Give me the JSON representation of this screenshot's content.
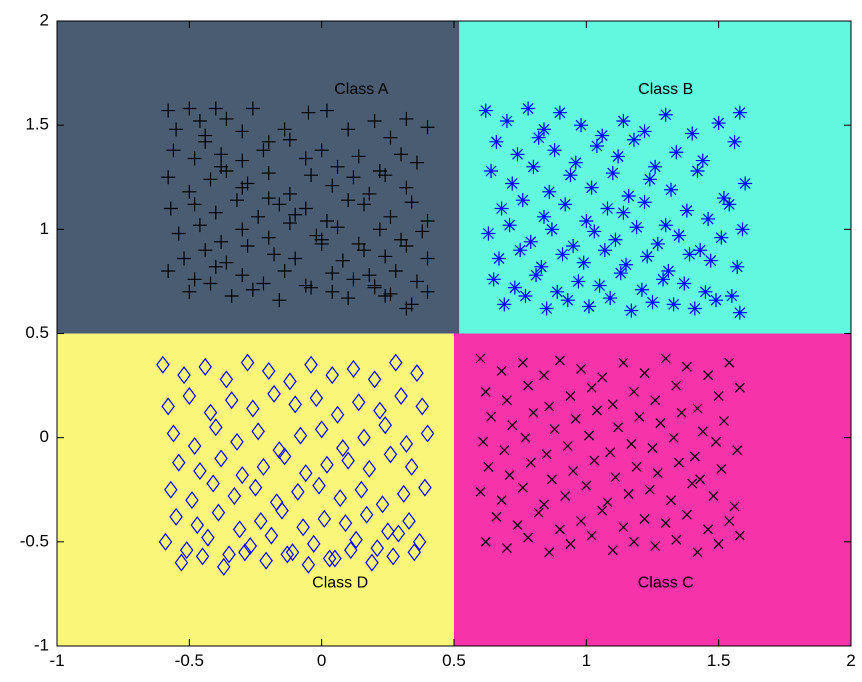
{
  "chart_data": {
    "type": "scatter",
    "title": "",
    "xlabel": "",
    "ylabel": "",
    "xlim": [
      -1,
      2
    ],
    "ylim": [
      -1,
      2
    ],
    "x_ticks": [
      "-1",
      "-0.5",
      "0",
      "0.5",
      "1",
      "1.5",
      "2"
    ],
    "y_ticks": [
      "-1",
      "-0.5",
      "0",
      "0.5",
      "1",
      "1.5",
      "2"
    ],
    "grid": false,
    "regions": [
      {
        "label": "Class A",
        "x": [
          -1,
          0.52
        ],
        "y": [
          0.5,
          2
        ],
        "color": "#4a5c72",
        "label_at": [
          0.15,
          1.67
        ]
      },
      {
        "label": "Class B",
        "x": [
          0.52,
          2
        ],
        "y": [
          0.5,
          2
        ],
        "color": "#62f8e0",
        "label_at": [
          1.3,
          1.67
        ]
      },
      {
        "label": "Class D",
        "x": [
          -1,
          0.5
        ],
        "y": [
          -1,
          0.5
        ],
        "color": "#faf67a",
        "label_at": [
          0.07,
          -0.7
        ]
      },
      {
        "label": "Class C",
        "x": [
          0.5,
          2
        ],
        "y": [
          -1,
          0.5
        ],
        "color": "#f733a9",
        "label_at": [
          1.3,
          -0.7
        ]
      }
    ],
    "series": [
      {
        "marker": "plus",
        "color": "#000000",
        "x": [
          -0.58,
          -0.55,
          -0.5,
          -0.46,
          -0.4,
          -0.36,
          -0.3,
          -0.26,
          -0.2,
          -0.14,
          -0.05,
          0.02,
          0.1,
          0.2,
          0.26,
          0.32,
          0.4,
          -0.56,
          -0.48,
          -0.44,
          -0.38,
          -0.3,
          -0.22,
          -0.12,
          -0.06,
          0.0,
          0.06,
          0.14,
          0.22,
          0.3,
          0.36,
          -0.58,
          -0.5,
          -0.42,
          -0.36,
          -0.28,
          -0.2,
          -0.12,
          -0.04,
          0.04,
          0.12,
          0.18,
          0.24,
          0.32,
          -0.57,
          -0.48,
          -0.4,
          -0.32,
          -0.24,
          -0.16,
          -0.06,
          0.02,
          0.1,
          0.16,
          0.26,
          0.34,
          0.4,
          -0.54,
          -0.46,
          -0.38,
          -0.3,
          -0.2,
          -0.12,
          -0.02,
          0.06,
          0.14,
          0.22,
          0.3,
          0.38,
          -0.52,
          -0.44,
          -0.36,
          -0.28,
          -0.18,
          -0.1,
          0.0,
          0.08,
          0.16,
          0.24,
          0.32,
          0.4,
          -0.58,
          -0.48,
          -0.4,
          -0.3,
          -0.22,
          -0.14,
          -0.04,
          0.04,
          0.12,
          0.2,
          0.28,
          0.36,
          -0.5,
          -0.42,
          -0.34,
          -0.26,
          -0.16,
          -0.06,
          0.04,
          0.1,
          0.2,
          0.26,
          0.34,
          0.4,
          -0.44,
          -0.38,
          -0.3,
          -0.2,
          -0.1,
          0.0,
          0.08,
          0.18,
          0.24,
          0.32
        ],
        "y": [
          1.57,
          1.48,
          1.58,
          1.52,
          1.58,
          1.53,
          1.47,
          1.58,
          1.42,
          1.48,
          1.56,
          1.57,
          1.48,
          1.52,
          1.44,
          1.53,
          1.49,
          1.38,
          1.34,
          1.42,
          1.36,
          1.33,
          1.38,
          1.43,
          1.34,
          1.38,
          1.3,
          1.35,
          1.28,
          1.36,
          1.32,
          1.25,
          1.18,
          1.24,
          1.28,
          1.22,
          1.27,
          1.17,
          1.26,
          1.21,
          1.25,
          1.17,
          1.26,
          1.2,
          1.1,
          1.12,
          1.08,
          1.14,
          1.06,
          1.12,
          1.1,
          1.04,
          1.14,
          1.12,
          1.06,
          1.13,
          1.04,
          0.98,
          1.02,
          0.94,
          1.0,
          0.96,
          1.03,
          0.97,
          1.01,
          0.93,
          1.0,
          0.95,
          0.99,
          0.86,
          0.9,
          0.84,
          0.92,
          0.88,
          0.86,
          0.93,
          0.85,
          0.9,
          0.87,
          0.92,
          0.86,
          0.8,
          0.76,
          0.82,
          0.78,
          0.74,
          0.8,
          0.72,
          0.79,
          0.76,
          0.73,
          0.8,
          0.75,
          0.7,
          0.74,
          0.68,
          0.71,
          0.66,
          0.73,
          0.7,
          0.67,
          0.72,
          0.69,
          0.64,
          0.7,
          1.45,
          1.3,
          1.2,
          1.15,
          1.07,
          0.95,
          0.85,
          0.78,
          0.68,
          0.62
        ]
      },
      {
        "marker": "asterisk",
        "color": "#0000ff",
        "x": [
          0.62,
          0.7,
          0.78,
          0.84,
          0.9,
          0.98,
          1.06,
          1.14,
          1.22,
          1.3,
          1.4,
          1.5,
          1.58,
          0.66,
          0.74,
          0.82,
          0.88,
          0.96,
          1.04,
          1.12,
          1.18,
          1.26,
          1.34,
          1.44,
          1.56,
          0.64,
          0.72,
          0.8,
          0.86,
          0.94,
          1.02,
          1.1,
          1.16,
          1.24,
          1.32,
          1.42,
          1.52,
          1.6,
          0.68,
          0.76,
          0.84,
          0.92,
          1.0,
          1.08,
          1.14,
          1.22,
          1.3,
          1.38,
          1.46,
          1.54,
          0.63,
          0.71,
          0.79,
          0.87,
          0.95,
          1.03,
          1.11,
          1.19,
          1.27,
          1.35,
          1.43,
          1.51,
          1.59,
          0.67,
          0.75,
          0.83,
          0.91,
          0.99,
          1.07,
          1.15,
          1.23,
          1.31,
          1.39,
          1.47,
          1.57,
          0.65,
          0.73,
          0.81,
          0.89,
          0.97,
          1.05,
          1.13,
          1.21,
          1.29,
          1.37,
          1.45,
          1.55,
          0.69,
          0.77,
          0.85,
          0.93,
          1.01,
          1.09,
          1.17,
          1.25,
          1.33,
          1.41,
          1.49,
          1.58
        ],
        "y": [
          1.57,
          1.52,
          1.58,
          1.48,
          1.56,
          1.5,
          1.45,
          1.52,
          1.47,
          1.55,
          1.46,
          1.51,
          1.56,
          1.42,
          1.36,
          1.44,
          1.38,
          1.32,
          1.4,
          1.35,
          1.43,
          1.3,
          1.37,
          1.33,
          1.42,
          1.28,
          1.22,
          1.3,
          1.18,
          1.26,
          1.2,
          1.27,
          1.16,
          1.24,
          1.19,
          1.28,
          1.15,
          1.22,
          1.1,
          1.14,
          1.06,
          1.12,
          1.04,
          1.1,
          1.08,
          1.13,
          1.02,
          1.09,
          1.05,
          1.12,
          0.98,
          1.02,
          0.94,
          1.0,
          0.92,
          0.99,
          0.95,
          1.01,
          0.93,
          0.97,
          0.9,
          0.96,
          1.0,
          0.86,
          0.9,
          0.82,
          0.88,
          0.84,
          0.9,
          0.83,
          0.87,
          0.8,
          0.88,
          0.85,
          0.82,
          0.76,
          0.72,
          0.78,
          0.7,
          0.75,
          0.73,
          0.79,
          0.71,
          0.76,
          0.74,
          0.7,
          0.68,
          0.64,
          0.68,
          0.62,
          0.66,
          0.63,
          0.67,
          0.61,
          0.65,
          0.64,
          0.62,
          0.66,
          0.6
        ]
      },
      {
        "marker": "x",
        "color": "#000000",
        "x": [
          0.6,
          0.68,
          0.76,
          0.84,
          0.9,
          0.98,
          1.06,
          1.14,
          1.22,
          1.3,
          1.38,
          1.46,
          1.54,
          0.62,
          0.7,
          0.78,
          0.86,
          0.94,
          1.02,
          1.1,
          1.18,
          1.26,
          1.34,
          1.42,
          1.5,
          1.58,
          0.64,
          0.72,
          0.8,
          0.88,
          0.96,
          1.04,
          1.12,
          1.2,
          1.28,
          1.36,
          1.44,
          1.52,
          0.61,
          0.69,
          0.77,
          0.85,
          0.93,
          1.01,
          1.09,
          1.17,
          1.25,
          1.33,
          1.41,
          1.49,
          1.57,
          0.63,
          0.71,
          0.79,
          0.87,
          0.95,
          1.03,
          1.11,
          1.19,
          1.27,
          1.35,
          1.43,
          1.51,
          0.6,
          0.68,
          0.76,
          0.84,
          0.92,
          1.0,
          1.08,
          1.16,
          1.24,
          1.32,
          1.4,
          1.48,
          1.56,
          0.66,
          0.74,
          0.82,
          0.9,
          0.98,
          1.06,
          1.14,
          1.22,
          1.3,
          1.38,
          1.46,
          1.54,
          0.62,
          0.7,
          0.78,
          0.86,
          0.94,
          1.02,
          1.1,
          1.18,
          1.26,
          1.34,
          1.42,
          1.5,
          1.58
        ],
        "y": [
          0.38,
          0.32,
          0.36,
          0.3,
          0.37,
          0.33,
          0.29,
          0.36,
          0.31,
          0.38,
          0.34,
          0.3,
          0.36,
          0.22,
          0.18,
          0.25,
          0.15,
          0.2,
          0.24,
          0.16,
          0.22,
          0.18,
          0.25,
          0.14,
          0.2,
          0.24,
          0.1,
          0.06,
          0.12,
          0.04,
          0.09,
          0.13,
          0.05,
          0.1,
          0.07,
          0.12,
          0.03,
          0.08,
          -0.02,
          -0.06,
          0.0,
          -0.08,
          -0.04,
          0.01,
          -0.07,
          -0.03,
          -0.05,
          0.0,
          -0.09,
          -0.02,
          -0.06,
          -0.14,
          -0.18,
          -0.12,
          -0.2,
          -0.16,
          -0.11,
          -0.19,
          -0.14,
          -0.17,
          -0.12,
          -0.2,
          -0.15,
          -0.26,
          -0.3,
          -0.24,
          -0.32,
          -0.28,
          -0.23,
          -0.31,
          -0.27,
          -0.25,
          -0.3,
          -0.22,
          -0.28,
          -0.33,
          -0.38,
          -0.42,
          -0.36,
          -0.44,
          -0.4,
          -0.35,
          -0.43,
          -0.39,
          -0.41,
          -0.37,
          -0.44,
          -0.4,
          -0.5,
          -0.53,
          -0.48,
          -0.55,
          -0.51,
          -0.47,
          -0.54,
          -0.5,
          -0.52,
          -0.49,
          -0.55,
          -0.51,
          -0.47
        ]
      },
      {
        "marker": "diamond",
        "color": "#0000ff",
        "x": [
          -0.6,
          -0.52,
          -0.44,
          -0.36,
          -0.28,
          -0.2,
          -0.12,
          -0.04,
          0.04,
          0.12,
          0.2,
          0.28,
          0.36,
          -0.58,
          -0.5,
          -0.42,
          -0.34,
          -0.26,
          -0.18,
          -0.1,
          -0.02,
          0.06,
          0.14,
          0.22,
          0.3,
          0.38,
          -0.56,
          -0.48,
          -0.4,
          -0.32,
          -0.24,
          -0.16,
          -0.08,
          0.0,
          0.08,
          0.16,
          0.24,
          0.32,
          0.4,
          -0.54,
          -0.46,
          -0.38,
          -0.3,
          -0.22,
          -0.14,
          -0.06,
          0.02,
          0.1,
          0.18,
          0.26,
          0.34,
          -0.57,
          -0.49,
          -0.41,
          -0.33,
          -0.25,
          -0.17,
          -0.09,
          -0.01,
          0.07,
          0.15,
          0.23,
          0.31,
          0.39,
          -0.55,
          -0.47,
          -0.39,
          -0.31,
          -0.23,
          -0.15,
          -0.07,
          0.01,
          0.09,
          0.17,
          0.25,
          0.33,
          -0.59,
          -0.51,
          -0.43,
          -0.35,
          -0.27,
          -0.19,
          -0.11,
          -0.03,
          0.05,
          0.13,
          0.21,
          0.29,
          0.37,
          -0.53,
          -0.45,
          -0.37,
          -0.29,
          -0.21,
          -0.13,
          -0.05,
          0.03,
          0.11,
          0.19,
          0.27,
          0.35
        ],
        "y": [
          0.35,
          0.3,
          0.34,
          0.28,
          0.36,
          0.32,
          0.27,
          0.35,
          0.3,
          0.33,
          0.28,
          0.36,
          0.31,
          0.15,
          0.2,
          0.12,
          0.18,
          0.14,
          0.21,
          0.16,
          0.19,
          0.11,
          0.17,
          0.13,
          0.2,
          0.15,
          0.02,
          -0.04,
          0.05,
          -0.02,
          0.03,
          -0.06,
          0.01,
          0.04,
          -0.05,
          0.0,
          0.06,
          -0.03,
          0.02,
          -0.12,
          -0.16,
          -0.1,
          -0.18,
          -0.14,
          -0.09,
          -0.17,
          -0.13,
          -0.11,
          -0.15,
          -0.08,
          -0.14,
          -0.25,
          -0.3,
          -0.22,
          -0.28,
          -0.24,
          -0.31,
          -0.26,
          -0.23,
          -0.29,
          -0.25,
          -0.32,
          -0.27,
          -0.24,
          -0.38,
          -0.42,
          -0.36,
          -0.44,
          -0.4,
          -0.35,
          -0.43,
          -0.39,
          -0.41,
          -0.37,
          -0.45,
          -0.4,
          -0.5,
          -0.54,
          -0.48,
          -0.56,
          -0.52,
          -0.47,
          -0.55,
          -0.51,
          -0.58,
          -0.49,
          -0.53,
          -0.46,
          -0.5,
          -0.6,
          -0.57,
          -0.62,
          -0.55,
          -0.59,
          -0.56,
          -0.61,
          -0.58,
          -0.54,
          -0.6,
          -0.57,
          -0.55
        ]
      }
    ]
  }
}
